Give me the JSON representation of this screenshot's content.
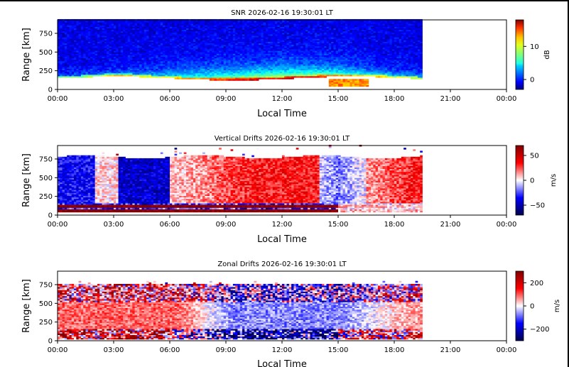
{
  "chart_data": [
    {
      "type": "heatmap",
      "title": "SNR 2026-02-16 19:30:01 LT",
      "xlabel": "Local Time",
      "ylabel": "Range [km]",
      "x_ticks": [
        "00:00",
        "03:00",
        "06:00",
        "09:00",
        "12:00",
        "15:00",
        "18:00",
        "21:00",
        "00:00"
      ],
      "y_ticks": [
        "0",
        "250",
        "500",
        "750"
      ],
      "xlim_hours": [
        0,
        24
      ],
      "ylim": [
        0,
        930
      ],
      "data_end_hours": 19.5,
      "colormap": "jet",
      "colorbar": {
        "label": "dB",
        "ticks": [
          "0",
          "10"
        ],
        "tick_values": [
          0,
          10
        ],
        "range": [
          -3,
          18
        ]
      },
      "grid": false
    },
    {
      "type": "heatmap",
      "title": "Vertical Drifts 2026-02-16 19:30:01 LT",
      "xlabel": "Local Time",
      "ylabel": "Range [km]",
      "x_ticks": [
        "00:00",
        "03:00",
        "06:00",
        "09:00",
        "12:00",
        "15:00",
        "18:00",
        "21:00",
        "00:00"
      ],
      "y_ticks": [
        "0",
        "250",
        "500",
        "750"
      ],
      "xlim_hours": [
        0,
        24
      ],
      "ylim": [
        0,
        930
      ],
      "data_end_hours": 19.5,
      "colormap": "seismic",
      "colorbar": {
        "label": "m/s",
        "ticks": [
          "−50",
          "0",
          "50"
        ],
        "tick_values": [
          -50,
          0,
          50
        ],
        "range": [
          -70,
          70
        ]
      },
      "grid": false
    },
    {
      "type": "heatmap",
      "title": "Zonal Drifts 2026-02-16 19:30:01 LT",
      "xlabel": "Local Time",
      "ylabel": "Range [km]",
      "x_ticks": [
        "00:00",
        "03:00",
        "06:00",
        "09:00",
        "12:00",
        "15:00",
        "18:00",
        "21:00",
        "00:00"
      ],
      "y_ticks": [
        "0",
        "250",
        "500",
        "750"
      ],
      "xlim_hours": [
        0,
        24
      ],
      "ylim": [
        0,
        930
      ],
      "data_end_hours": 19.5,
      "colormap": "seismic",
      "colorbar": {
        "label": "m/s",
        "ticks": [
          "−200",
          "0",
          "200"
        ],
        "tick_values": [
          -200,
          0,
          200
        ],
        "range": [
          -300,
          300
        ]
      },
      "grid": false
    }
  ]
}
